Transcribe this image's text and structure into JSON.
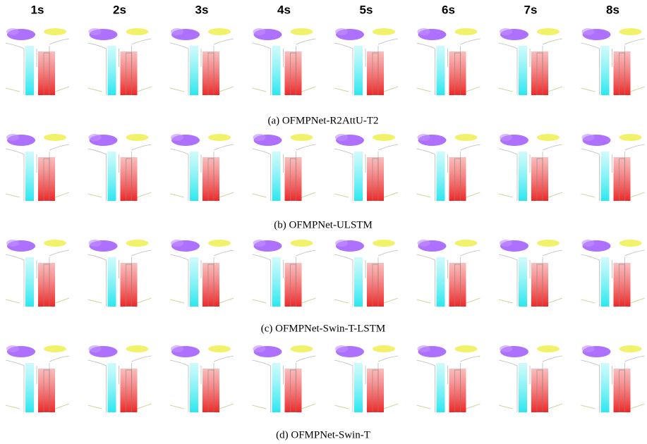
{
  "column_headers": [
    "1s",
    "2s",
    "3s",
    "4s",
    "5s",
    "6s",
    "7s",
    "8s"
  ],
  "panels": [
    {
      "caption": "(a) OFMPNet-R2AttU-T2"
    },
    {
      "caption": "(b) OFMPNet-ULSTM"
    },
    {
      "caption": "(c) OFMPNet-Swin-T-LSTM"
    },
    {
      "caption": "(d) OFMPNet-Swin-T"
    }
  ]
}
